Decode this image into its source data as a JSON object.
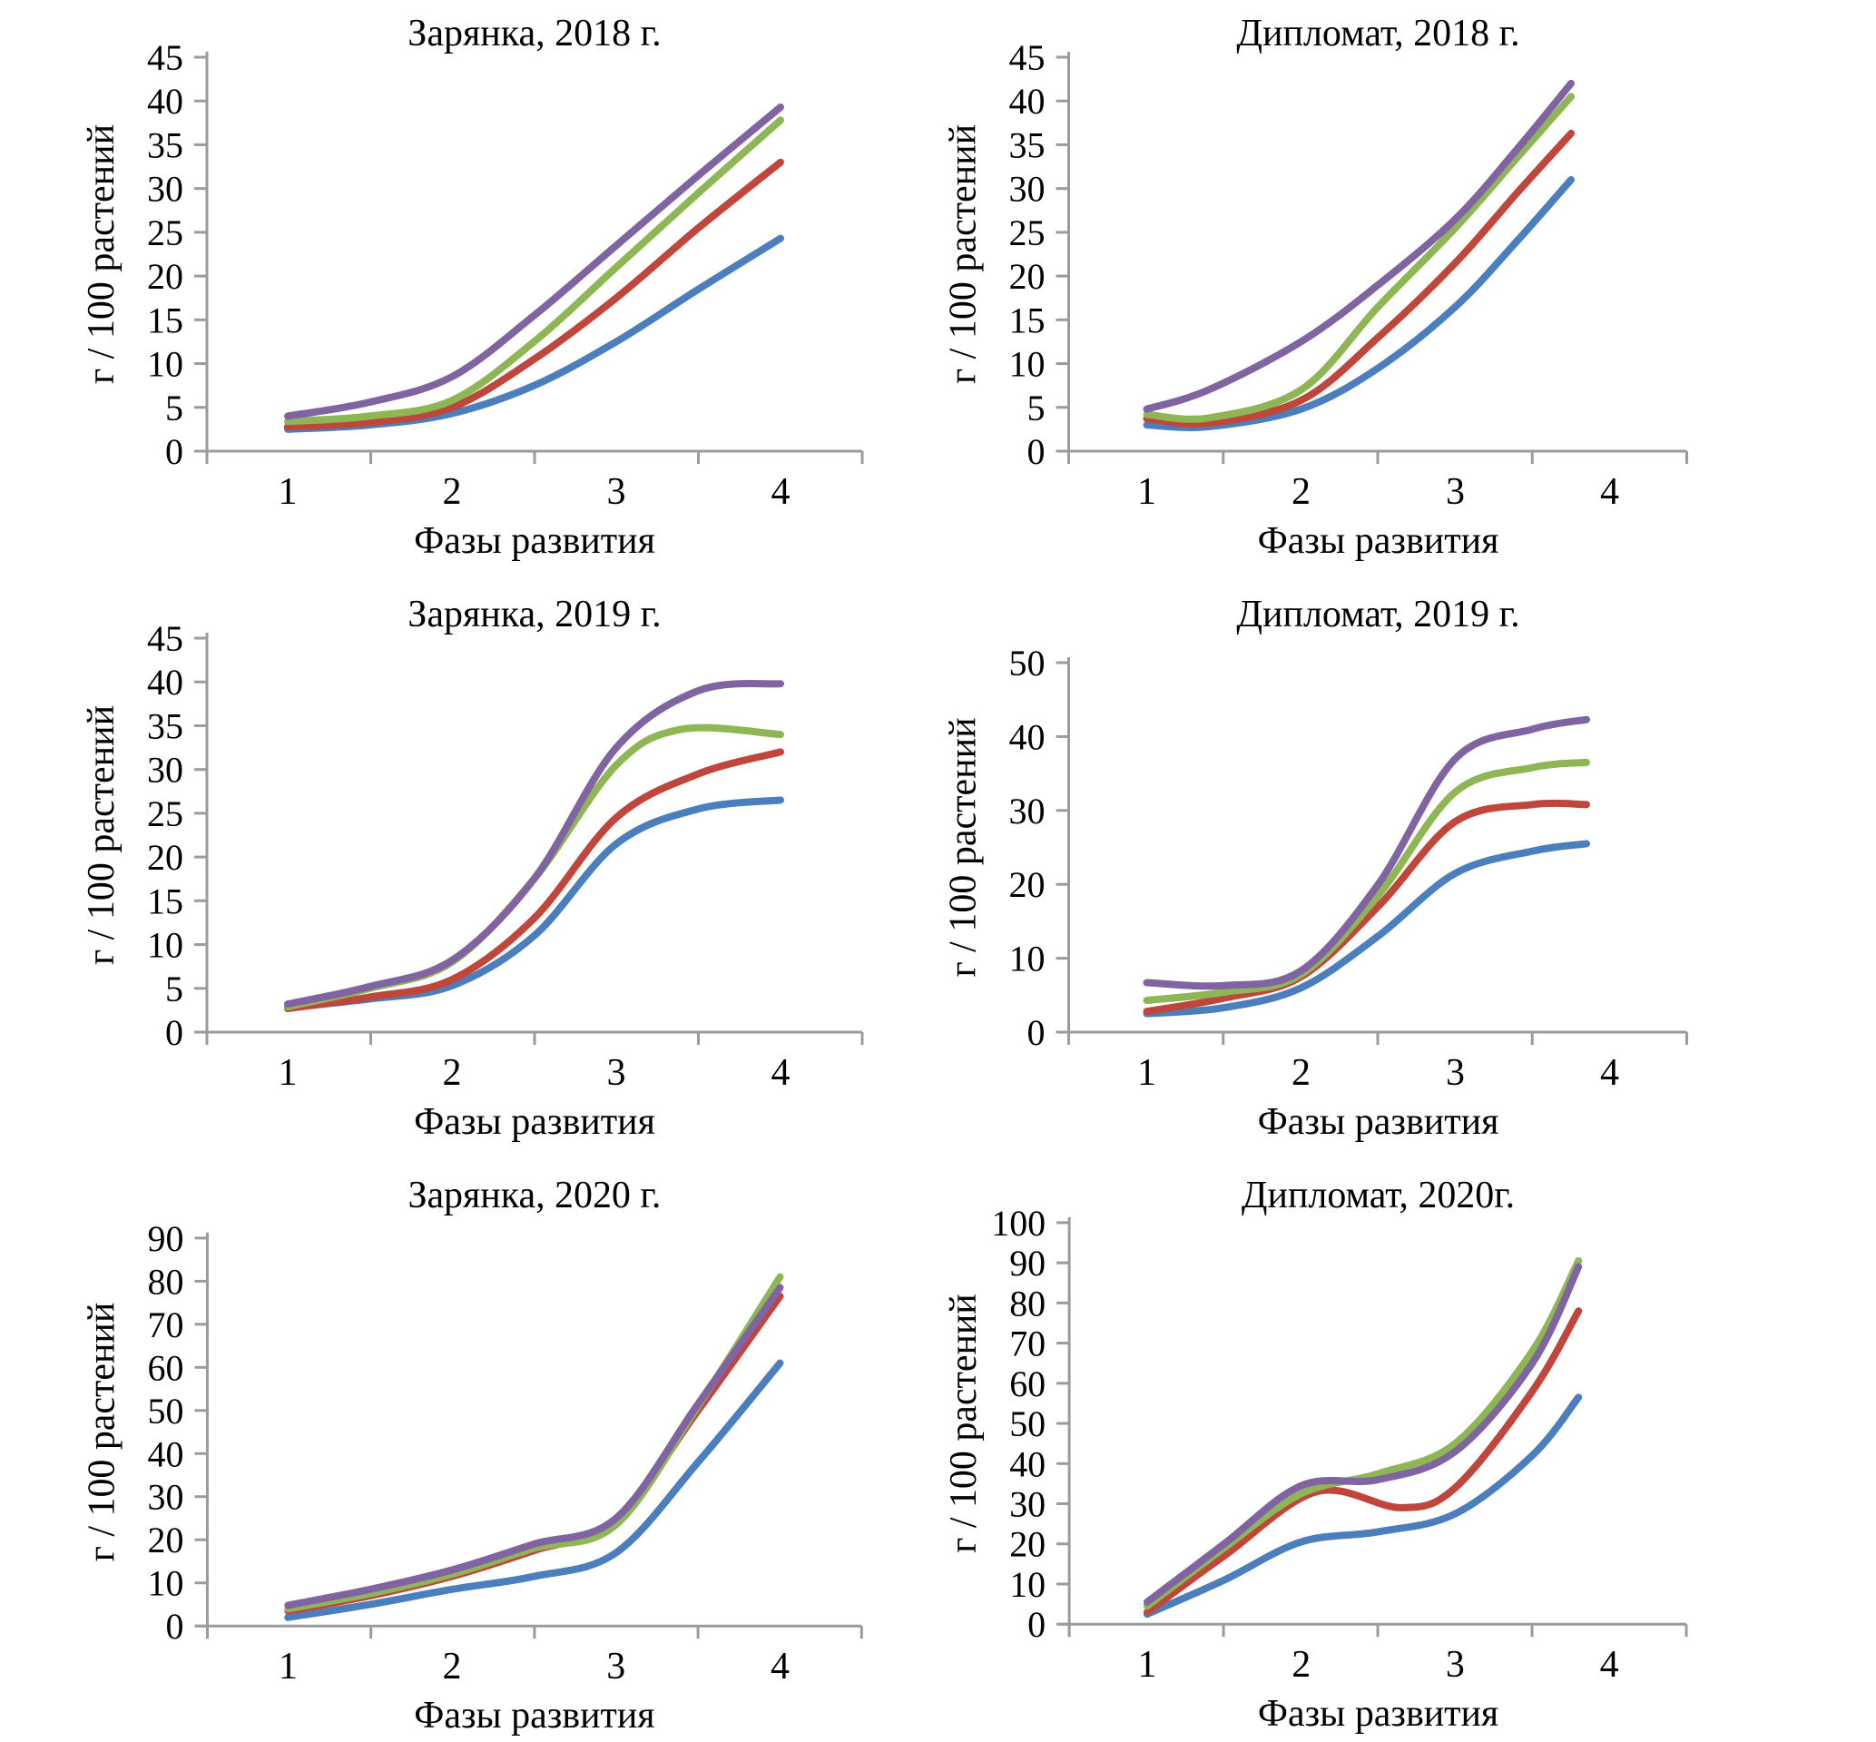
{
  "chart_data": [
    {
      "type": "line",
      "title": "Зарянка, 2018 г.",
      "xlabel": "Фазы развития",
      "ylabel": "г / 100 растений",
      "x_ticks": [
        "1",
        "2",
        "3",
        "4"
      ],
      "y_ticks": [
        "0",
        "5",
        "10",
        "15",
        "20",
        "25",
        "30",
        "35",
        "40",
        "45"
      ],
      "ylim": [
        0,
        45
      ],
      "grid": "off",
      "legend": "none",
      "series": [
        {
          "name": "blue",
          "color": "#4A7EBD",
          "points": [
            [
              1,
              2.5
            ],
            [
              1.5,
              3.0
            ],
            [
              2,
              4.3
            ],
            [
              2.5,
              7.5
            ],
            [
              3,
              12.5
            ],
            [
              3.5,
              18.5
            ],
            [
              4,
              24.3
            ]
          ]
        },
        {
          "name": "red",
          "color": "#C0453B",
          "points": [
            [
              1,
              2.8
            ],
            [
              1.5,
              3.3
            ],
            [
              2,
              5.0
            ],
            [
              2.5,
              10.5
            ],
            [
              3,
              17.5
            ],
            [
              3.5,
              25.5
            ],
            [
              4,
              33.0
            ]
          ]
        },
        {
          "name": "green",
          "color": "#8FB654",
          "points": [
            [
              1,
              3.4
            ],
            [
              1.5,
              4.0
            ],
            [
              2,
              5.8
            ],
            [
              2.5,
              12.5
            ],
            [
              3,
              21.0
            ],
            [
              3.5,
              29.5
            ],
            [
              4,
              37.8
            ]
          ]
        },
        {
          "name": "purple",
          "color": "#8064A2",
          "points": [
            [
              1,
              4.0
            ],
            [
              1.5,
              5.6
            ],
            [
              2,
              8.5
            ],
            [
              2.5,
              15.5
            ],
            [
              3,
              23.5
            ],
            [
              3.5,
              31.5
            ],
            [
              4,
              39.3
            ]
          ]
        }
      ]
    },
    {
      "type": "line",
      "title": "Дипломат, 2018 г.",
      "xlabel": "Фазы развития",
      "ylabel": "г / 100 растений",
      "x_ticks": [
        "1",
        "2",
        "3",
        "4"
      ],
      "y_ticks": [
        "0",
        "5",
        "10",
        "15",
        "20",
        "25",
        "30",
        "35",
        "40",
        "45"
      ],
      "ylim": [
        0,
        45
      ],
      "grid": "off",
      "legend": "none",
      "series": [
        {
          "name": "blue",
          "color": "#4A7EBD",
          "points": [
            [
              1,
              3.0
            ],
            [
              1.4,
              2.8
            ],
            [
              2,
              4.8
            ],
            [
              2.5,
              9.5
            ],
            [
              3,
              16.5
            ],
            [
              3.4,
              24.0
            ],
            [
              3.75,
              31.0
            ]
          ]
        },
        {
          "name": "red",
          "color": "#C0453B",
          "points": [
            [
              1,
              3.7
            ],
            [
              1.4,
              3.2
            ],
            [
              2,
              5.8
            ],
            [
              2.5,
              13.0
            ],
            [
              3,
              21.5
            ],
            [
              3.4,
              29.5
            ],
            [
              3.75,
              36.3
            ]
          ]
        },
        {
          "name": "green",
          "color": "#8FB654",
          "points": [
            [
              1,
              4.2
            ],
            [
              1.4,
              3.8
            ],
            [
              2,
              7.0
            ],
            [
              2.5,
              16.5
            ],
            [
              3,
              25.5
            ],
            [
              3.4,
              33.5
            ],
            [
              3.75,
              40.5
            ]
          ]
        },
        {
          "name": "purple",
          "color": "#8064A2",
          "points": [
            [
              1,
              4.8
            ],
            [
              1.4,
              7.0
            ],
            [
              2,
              12.5
            ],
            [
              2.5,
              19.0
            ],
            [
              3,
              26.5
            ],
            [
              3.4,
              34.5
            ],
            [
              3.75,
              42.0
            ]
          ]
        }
      ]
    },
    {
      "type": "line",
      "title": "Зарянка, 2019 г.",
      "xlabel": "Фазы развития",
      "ylabel": "г / 100 растений",
      "x_ticks": [
        "1",
        "2",
        "3",
        "4"
      ],
      "y_ticks": [
        "0",
        "5",
        "10",
        "15",
        "20",
        "25",
        "30",
        "35",
        "40",
        "45"
      ],
      "ylim": [
        0,
        45
      ],
      "grid": "off",
      "legend": "none",
      "series": [
        {
          "name": "blue",
          "color": "#4A7EBD",
          "points": [
            [
              1,
              2.8
            ],
            [
              1.5,
              3.8
            ],
            [
              2,
              5.3
            ],
            [
              2.5,
              11.0
            ],
            [
              3,
              21.5
            ],
            [
              3.5,
              25.5
            ],
            [
              4,
              26.5
            ]
          ]
        },
        {
          "name": "red",
          "color": "#C0453B",
          "points": [
            [
              1,
              2.7
            ],
            [
              1.5,
              4.0
            ],
            [
              2,
              6.0
            ],
            [
              2.5,
              13.0
            ],
            [
              3,
              24.5
            ],
            [
              3.5,
              29.5
            ],
            [
              4,
              32.0
            ]
          ]
        },
        {
          "name": "green",
          "color": "#8FB654",
          "points": [
            [
              1,
              2.9
            ],
            [
              1.5,
              5.0
            ],
            [
              2,
              8.0
            ],
            [
              2.5,
              17.5
            ],
            [
              3,
              30.5
            ],
            [
              3.4,
              34.6
            ],
            [
              4,
              34.0
            ]
          ]
        },
        {
          "name": "purple",
          "color": "#8064A2",
          "points": [
            [
              1,
              3.2
            ],
            [
              1.5,
              5.2
            ],
            [
              2,
              8.2
            ],
            [
              2.5,
              17.5
            ],
            [
              3,
              32.5
            ],
            [
              3.5,
              39.0
            ],
            [
              4,
              39.8
            ]
          ]
        }
      ]
    },
    {
      "type": "line",
      "title": "Дипломат, 2019 г.",
      "xlabel": "Фазы развития",
      "ylabel": "г / 100 растений",
      "x_ticks": [
        "1",
        "2",
        "3",
        "4"
      ],
      "y_ticks": [
        "0",
        "10",
        "20",
        "30",
        "40",
        "50"
      ],
      "ylim": [
        0,
        50
      ],
      "grid": "off",
      "legend": "none",
      "series": [
        {
          "name": "blue",
          "color": "#4A7EBD",
          "points": [
            [
              1,
              2.5
            ],
            [
              1.5,
              3.3
            ],
            [
              2,
              6.0
            ],
            [
              2.5,
              13.0
            ],
            [
              3,
              21.5
            ],
            [
              3.5,
              24.5
            ],
            [
              3.85,
              25.5
            ]
          ]
        },
        {
          "name": "red",
          "color": "#C0453B",
          "points": [
            [
              1,
              2.8
            ],
            [
              1.5,
              4.6
            ],
            [
              2,
              7.5
            ],
            [
              2.5,
              17.0
            ],
            [
              3,
              28.5
            ],
            [
              3.5,
              30.8
            ],
            [
              3.85,
              30.8
            ]
          ]
        },
        {
          "name": "green",
          "color": "#8FB654",
          "points": [
            [
              1,
              4.3
            ],
            [
              1.5,
              5.4
            ],
            [
              2,
              7.8
            ],
            [
              2.5,
              18.5
            ],
            [
              3,
              32.5
            ],
            [
              3.5,
              35.8
            ],
            [
              3.85,
              36.5
            ]
          ]
        },
        {
          "name": "purple",
          "color": "#8064A2",
          "points": [
            [
              1,
              6.7
            ],
            [
              1.5,
              6.3
            ],
            [
              2,
              8.3
            ],
            [
              2.5,
              20.0
            ],
            [
              3,
              37.0
            ],
            [
              3.5,
              41.0
            ],
            [
              3.85,
              42.3
            ]
          ]
        }
      ]
    },
    {
      "type": "line",
      "title": "Зарянка, 2020 г.",
      "xlabel": "Фазы развития",
      "ylabel": "г / 100 растений",
      "x_ticks": [
        "1",
        "2",
        "3",
        "4"
      ],
      "y_ticks": [
        "0",
        "10",
        "20",
        "30",
        "40",
        "50",
        "60",
        "70",
        "80",
        "90"
      ],
      "ylim": [
        0,
        90
      ],
      "grid": "off",
      "legend": "none",
      "series": [
        {
          "name": "blue",
          "color": "#4A7EBD",
          "points": [
            [
              1,
              2.0
            ],
            [
              1.5,
              5.0
            ],
            [
              2,
              8.5
            ],
            [
              2.5,
              11.5
            ],
            [
              3,
              17.0
            ],
            [
              3.5,
              38.0
            ],
            [
              4,
              61.0
            ]
          ]
        },
        {
          "name": "red",
          "color": "#C0453B",
          "points": [
            [
              1,
              3.5
            ],
            [
              1.5,
              7.0
            ],
            [
              2,
              11.5
            ],
            [
              2.5,
              17.5
            ],
            [
              3,
              24.5
            ],
            [
              3.5,
              50.0
            ],
            [
              4,
              76.5
            ]
          ]
        },
        {
          "name": "green",
          "color": "#8FB654",
          "points": [
            [
              1,
              4.0
            ],
            [
              1.5,
              7.5
            ],
            [
              2,
              12.0
            ],
            [
              2.5,
              18.0
            ],
            [
              3,
              23.5
            ],
            [
              3.5,
              51.0
            ],
            [
              4,
              81.0
            ]
          ]
        },
        {
          "name": "purple",
          "color": "#8064A2",
          "points": [
            [
              1,
              4.8
            ],
            [
              1.5,
              8.5
            ],
            [
              2,
              13.0
            ],
            [
              2.5,
              19.0
            ],
            [
              3,
              25.0
            ],
            [
              3.5,
              51.5
            ],
            [
              4,
              78.5
            ]
          ]
        }
      ]
    },
    {
      "type": "line",
      "title": "Дипломат, 2020г.",
      "xlabel": "Фазы развития",
      "ylabel": "г / 100 растений",
      "x_ticks": [
        "1",
        "2",
        "3",
        "4"
      ],
      "y_ticks": [
        "0",
        "10",
        "20",
        "30",
        "40",
        "50",
        "60",
        "70",
        "80",
        "90",
        "100"
      ],
      "ylim": [
        0,
        100
      ],
      "grid": "off",
      "legend": "none",
      "series": [
        {
          "name": "blue",
          "color": "#4A7EBD",
          "points": [
            [
              1,
              2.5
            ],
            [
              1.5,
              11.0
            ],
            [
              2,
              20.5
            ],
            [
              2.5,
              23.0
            ],
            [
              3,
              27.5
            ],
            [
              3.5,
              42.0
            ],
            [
              3.8,
              56.5
            ]
          ]
        },
        {
          "name": "red",
          "color": "#C0453B",
          "points": [
            [
              1,
              3.0
            ],
            [
              1.5,
              17.0
            ],
            [
              2.1,
              33.0
            ],
            [
              2.65,
              29.0
            ],
            [
              3,
              34.0
            ],
            [
              3.5,
              58.0
            ],
            [
              3.8,
              78.0
            ]
          ]
        },
        {
          "name": "green",
          "color": "#8FB654",
          "points": [
            [
              1,
              4.5
            ],
            [
              1.5,
              19.0
            ],
            [
              2,
              32.5
            ],
            [
              2.5,
              37.5
            ],
            [
              3,
              45.0
            ],
            [
              3.5,
              68.0
            ],
            [
              3.8,
              90.5
            ]
          ]
        },
        {
          "name": "purple",
          "color": "#8064A2",
          "points": [
            [
              1,
              5.5
            ],
            [
              1.5,
              20.0
            ],
            [
              2,
              34.5
            ],
            [
              2.5,
              36.0
            ],
            [
              3,
              43.0
            ],
            [
              3.5,
              65.0
            ],
            [
              3.8,
              89.0
            ]
          ]
        }
      ]
    }
  ]
}
